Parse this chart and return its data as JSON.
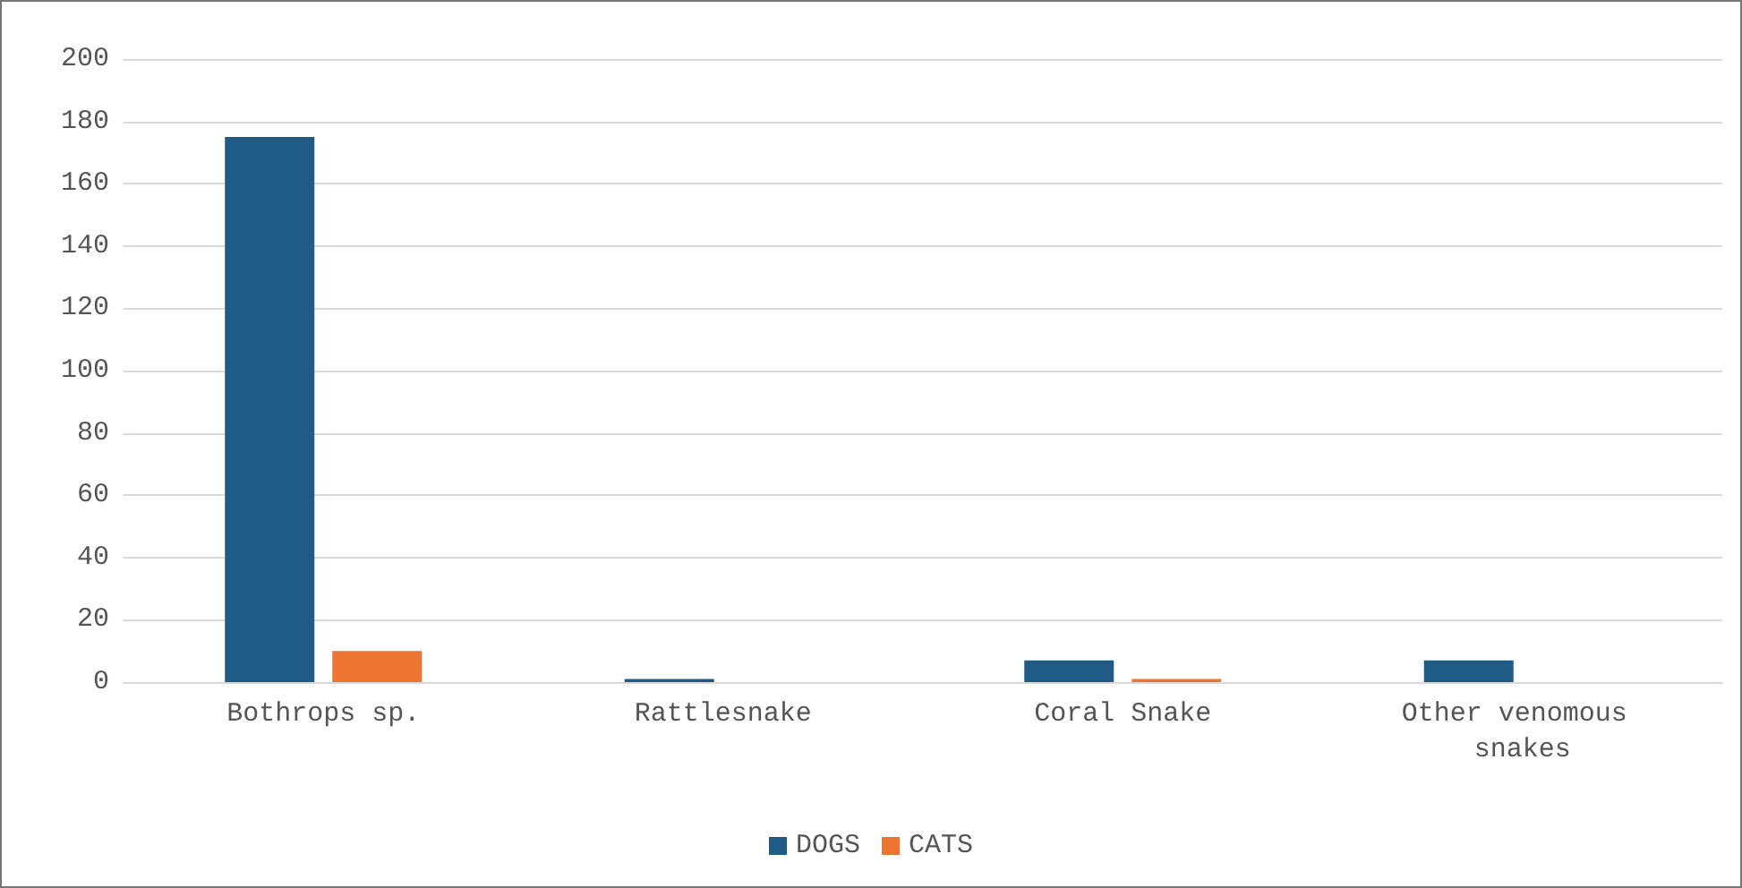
{
  "chart_data": {
    "type": "bar",
    "categories": [
      "Bothrops sp.",
      "Rattlesnake",
      "Coral Snake",
      "Other venomous snakes"
    ],
    "series": [
      {
        "name": "DOGS",
        "color": "#1f5b84",
        "values": [
          175,
          1,
          7,
          7
        ]
      },
      {
        "name": "CATS",
        "color": "#ed7431",
        "values": [
          10,
          0,
          1,
          0
        ]
      }
    ],
    "ylim": [
      0,
      200
    ],
    "yticks": [
      0,
      20,
      40,
      60,
      80,
      100,
      120,
      140,
      160,
      180,
      200
    ],
    "grid": "y",
    "legend": "bottom"
  }
}
